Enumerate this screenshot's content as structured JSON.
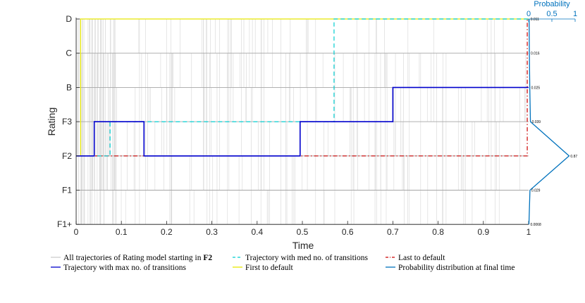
{
  "chart_data": {
    "type": "line",
    "xlabel": "Time",
    "ylabel": "Rating",
    "xlim": [
      0,
      1
    ],
    "x_ticks": [
      "0",
      "0.1",
      "0.2",
      "0.3",
      "0.4",
      "0.5",
      "0.6",
      "0.7",
      "0.8",
      "0.9",
      "1"
    ],
    "y_categories": [
      "F1+",
      "F1",
      "F2",
      "F3",
      "B",
      "C",
      "D"
    ],
    "grid": false,
    "start_state": "F2",
    "series": [
      {
        "name": "Trajectory with max no. of transitions",
        "color": "#0000CD",
        "style": "solid",
        "x": [
          0,
          0.04,
          0.04,
          0.15,
          0.15,
          0.495,
          0.495,
          0.7,
          0.7,
          1
        ],
        "y": [
          "F2",
          "F2",
          "F3",
          "F3",
          "F2",
          "F2",
          "F3",
          "F3",
          "B",
          "B"
        ]
      },
      {
        "name": "Trajectory with med no. of transitions",
        "color": "#00CED1",
        "style": "dashed",
        "x": [
          0,
          0.075,
          0.075,
          0.57,
          0.57,
          1
        ],
        "y": [
          "F2",
          "F2",
          "F3",
          "F3",
          "D",
          "D"
        ]
      },
      {
        "name": "Last to default",
        "color": "#CC0000",
        "style": "dashdot",
        "x": [
          0,
          0.997,
          0.997,
          1
        ],
        "y": [
          "F2",
          "F2",
          "D",
          "D"
        ]
      },
      {
        "name": "First to default",
        "color": "#E8E800",
        "style": "solid",
        "x": [
          0,
          0.01,
          0.01,
          1
        ],
        "y": [
          "F2",
          "F2",
          "D",
          "D"
        ]
      }
    ],
    "background_series_label": "All trajectories of Rating model starting in F2",
    "probability": {
      "title": "Probability",
      "xlim": [
        0,
        1
      ],
      "ticks": [
        "0",
        "0.5",
        "1"
      ],
      "name": "Probability distribution at final time",
      "color": "#0072BD",
      "states": [
        "F1+",
        "F1",
        "F2",
        "F3",
        "B",
        "C",
        "D"
      ],
      "values": [
        0.0068,
        0.029,
        0.87,
        0.039,
        0.025,
        0.016,
        0.011
      ],
      "labels": [
        "0.0068",
        "0.029",
        "0.87",
        "0.039",
        "0.025",
        "0.016",
        "0.011"
      ]
    }
  },
  "legend": {
    "items": [
      {
        "text_prefix": "All trajectories of Rating model starting in ",
        "text_bold": "F2",
        "color": "#cccccc",
        "style": "solid"
      },
      {
        "text": "Trajectory with med no. of transitions",
        "color": "#00CED1",
        "style": "dashed"
      },
      {
        "text": "Last to default",
        "color": "#CC0000",
        "style": "dashdot"
      },
      {
        "text": "Trajectory with max no. of transitions",
        "color": "#0000CD",
        "style": "solid"
      },
      {
        "text": "First to default",
        "color": "#E8E800",
        "style": "solid"
      },
      {
        "text": "Probability distribution at final time",
        "color": "#0072BD",
        "style": "solid"
      }
    ]
  }
}
